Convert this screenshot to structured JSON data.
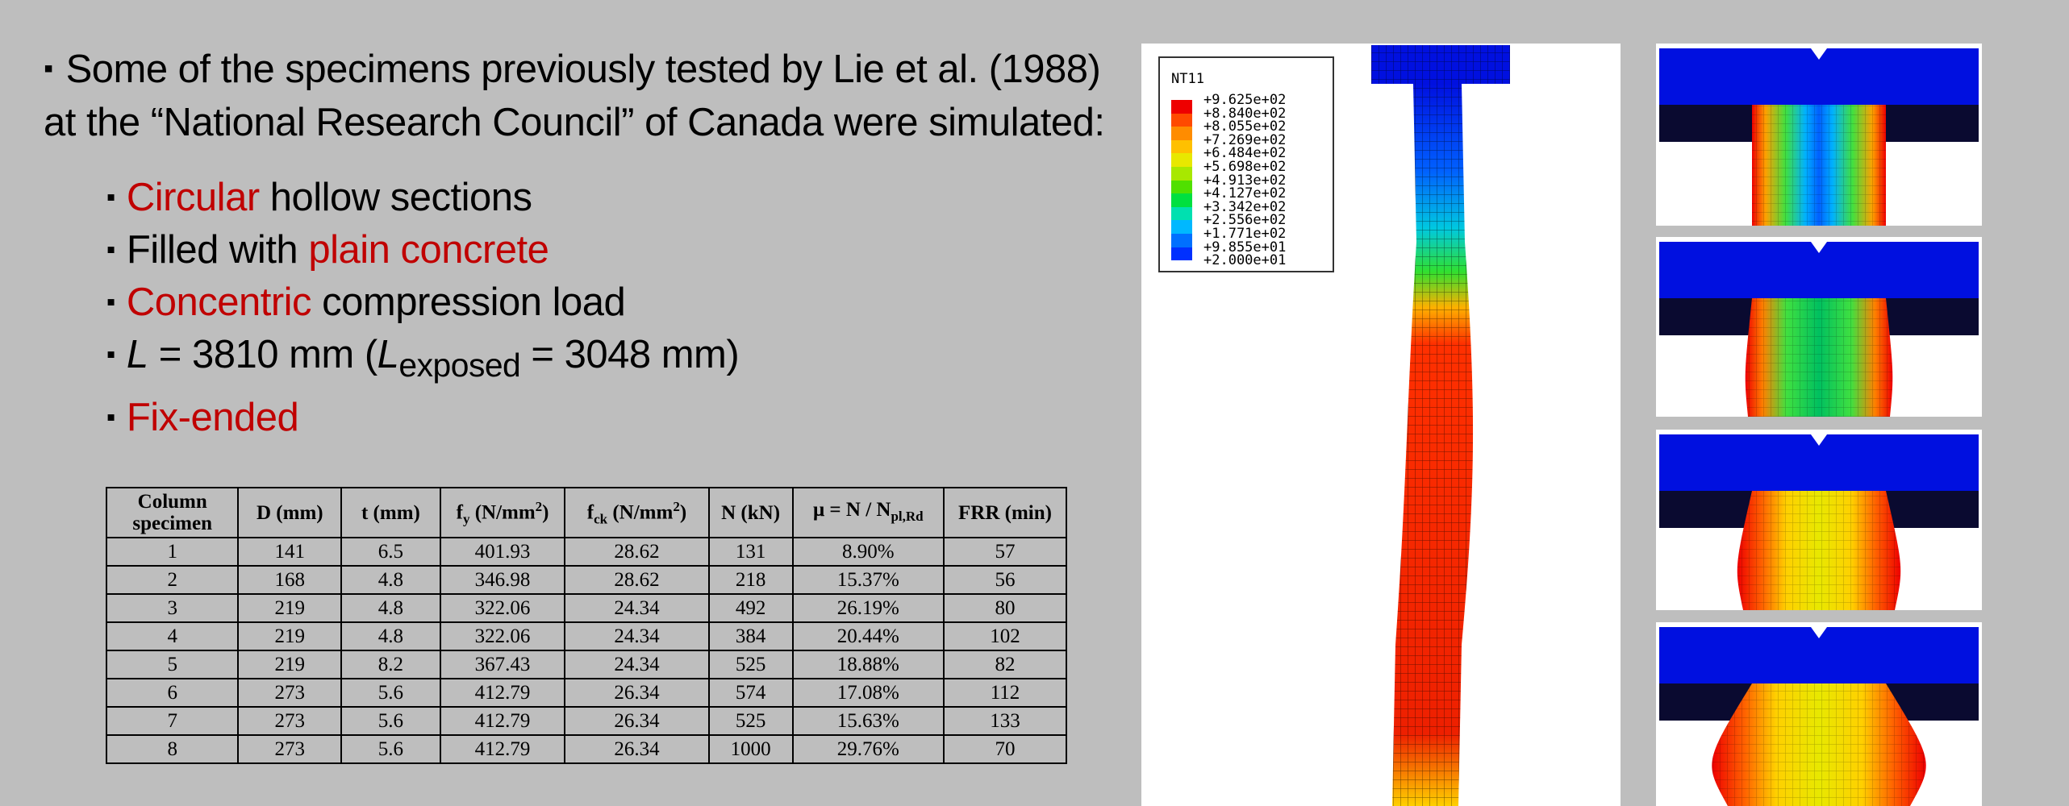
{
  "intro": "Some of the specimens previously tested by Lie et al. (1988) at the “National Research Council” of Canada were simulated:",
  "bullets": [
    [
      {
        "text": "Circular",
        "style": "highlight"
      },
      {
        "text": " hollow sections"
      }
    ],
    [
      {
        "text": "Filled with "
      },
      {
        "text": "plain concrete",
        "style": "highlight"
      }
    ],
    [
      {
        "text": "Concentric",
        "style": "highlight"
      },
      {
        "text": " compression load"
      }
    ],
    [
      {
        "text": "L",
        "style": "italic"
      },
      {
        "text": " = 3810 mm ("
      },
      {
        "text": "L",
        "style": "italic"
      },
      {
        "text": "exposed",
        "style": "sub"
      },
      {
        "text": " = 3048 mm)"
      }
    ],
    [
      {
        "text": "Fix-ended",
        "style": "highlight"
      }
    ]
  ],
  "table": {
    "header": [
      [
        {
          "text": "Column specimen"
        }
      ],
      [
        {
          "text": "D (mm)"
        }
      ],
      [
        {
          "text": "t (mm)"
        }
      ],
      [
        {
          "text": "f"
        },
        {
          "text": "y",
          "style": "sub"
        },
        {
          "text": " (N/mm"
        },
        {
          "text": "2",
          "style": "sup"
        },
        {
          "text": ")"
        }
      ],
      [
        {
          "text": "f"
        },
        {
          "text": "ck",
          "style": "sub"
        },
        {
          "text": " (N/mm"
        },
        {
          "text": "2",
          "style": "sup"
        },
        {
          "text": ")"
        }
      ],
      [
        {
          "text": "N (kN)"
        }
      ],
      [
        {
          "text": "μ = N / N"
        },
        {
          "text": "pl,Rd",
          "style": "sub"
        }
      ],
      [
        {
          "text": "FRR (min)"
        }
      ]
    ],
    "rows": [
      [
        1,
        141,
        6.5,
        401.93,
        28.62,
        131,
        "8.90%",
        57
      ],
      [
        2,
        168,
        4.8,
        346.98,
        28.62,
        218,
        "15.37%",
        56
      ],
      [
        3,
        219,
        4.8,
        322.06,
        24.34,
        492,
        "26.19%",
        80
      ],
      [
        4,
        219,
        4.8,
        322.06,
        24.34,
        384,
        "20.44%",
        102
      ],
      [
        5,
        219,
        8.2,
        367.43,
        24.34,
        525,
        "18.88%",
        82
      ],
      [
        6,
        273,
        5.6,
        412.79,
        26.34,
        574,
        "17.08%",
        112
      ],
      [
        7,
        273,
        5.6,
        412.79,
        26.34,
        525,
        "15.63%",
        133
      ],
      [
        8,
        273,
        5.6,
        412.79,
        26.34,
        1000,
        "29.76%",
        70
      ]
    ]
  },
  "legend": {
    "title": "NT11",
    "labels": [
      "+9.625e+02",
      "+8.840e+02",
      "+8.055e+02",
      "+7.269e+02",
      "+6.484e+02",
      "+5.698e+02",
      "+4.913e+02",
      "+4.127e+02",
      "+3.342e+02",
      "+2.556e+02",
      "+1.771e+02",
      "+9.855e+01",
      "+2.000e+01"
    ],
    "colors": [
      "#ee0000",
      "#ff4a00",
      "#ff8c00",
      "#ffc000",
      "#e8e800",
      "#a8e800",
      "#50e000",
      "#00e040",
      "#00e0b0",
      "#00b8ff",
      "#0070ff",
      "#0030ff"
    ]
  }
}
